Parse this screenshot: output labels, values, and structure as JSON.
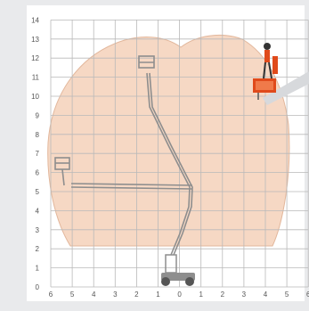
{
  "diagram": {
    "y_ticks": [
      "0",
      "1",
      "2",
      "3",
      "4",
      "5",
      "6",
      "7",
      "8",
      "9",
      "10",
      "11",
      "12",
      "13",
      "14"
    ],
    "x_ticks": [
      "6",
      "5",
      "4",
      "3",
      "2",
      "1",
      "0",
      "1",
      "2",
      "3",
      "4",
      "5",
      "6"
    ],
    "side_caption": "",
    "colors": {
      "envelope_fill": "#f6d8c4",
      "grid": "#b9b9b9",
      "background": "#ffffff",
      "machine_accent": "#e04a1b",
      "machine_line": "#8e8e8e"
    }
  }
}
